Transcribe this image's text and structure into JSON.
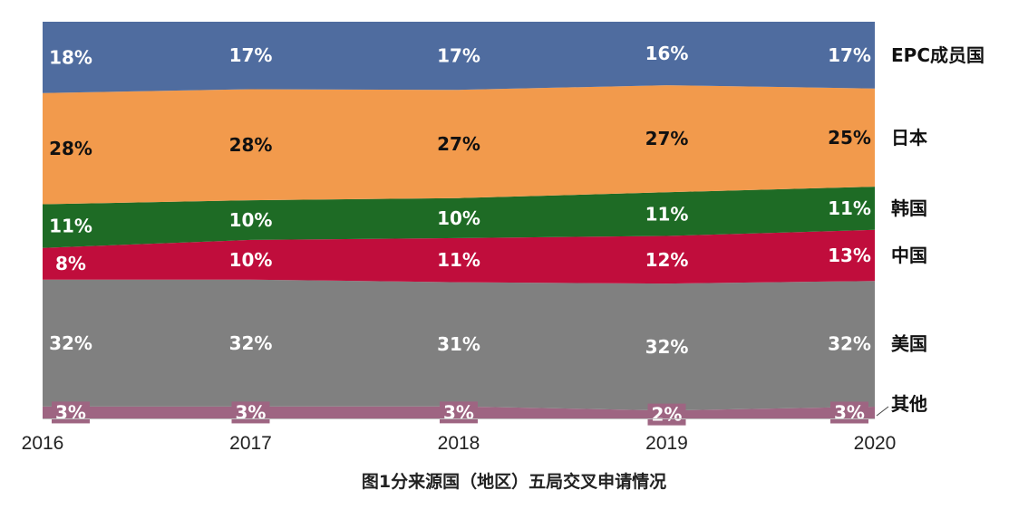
{
  "chart_data": {
    "type": "area",
    "stacked": true,
    "normalized_percent": true,
    "x": [
      "2016",
      "2017",
      "2018",
      "2019",
      "2020"
    ],
    "series": [
      {
        "name": "其他",
        "values": [
          3,
          3,
          3,
          2,
          3
        ],
        "labels": [
          "3%",
          "3%",
          "3%",
          "2%",
          "3%"
        ],
        "color": "#9e6582",
        "label_color": "#ffffff"
      },
      {
        "name": "美国",
        "values": [
          32,
          32,
          31,
          32,
          32
        ],
        "labels": [
          "32%",
          "32%",
          "31%",
          "32%",
          "32%"
        ],
        "color": "#808080",
        "label_color": "#ffffff"
      },
      {
        "name": "中国",
        "values": [
          8,
          10,
          11,
          12,
          13
        ],
        "labels": [
          "8%",
          "10%",
          "11%",
          "12%",
          "13%"
        ],
        "color": "#c00d3c",
        "label_color": "#ffffff"
      },
      {
        "name": "韩国",
        "values": [
          11,
          10,
          10,
          11,
          11
        ],
        "labels": [
          "11%",
          "10%",
          "10%",
          "11%",
          "11%"
        ],
        "color": "#1e6b25",
        "label_color": "#ffffff"
      },
      {
        "name": "日本",
        "values": [
          28,
          28,
          27,
          27,
          25
        ],
        "labels": [
          "28%",
          "28%",
          "27%",
          "27%",
          "25%"
        ],
        "color": "#f29a4c",
        "label_color": "#111111"
      },
      {
        "name": "EPC成员国",
        "values": [
          18,
          17,
          17,
          16,
          17
        ],
        "labels": [
          "18%",
          "17%",
          "17%",
          "16%",
          "17%"
        ],
        "color": "#4f6c9f",
        "label_color": "#ffffff"
      }
    ],
    "title": "图1分来源国（地区）五局交叉申请情况",
    "xlabel": "",
    "ylabel": "",
    "legend": "right, labels beside each band",
    "grid": false
  }
}
